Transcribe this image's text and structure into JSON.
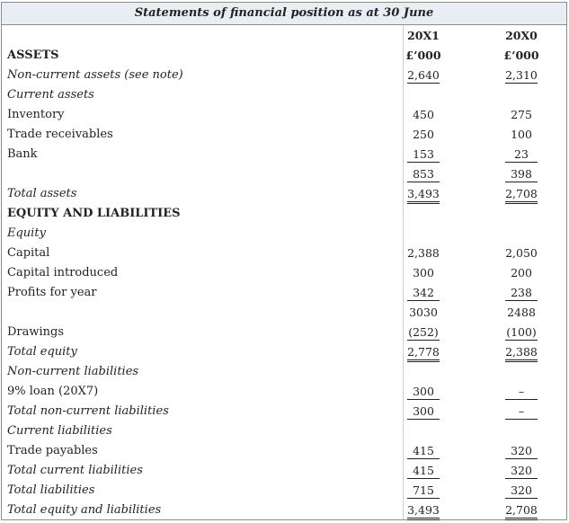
{
  "title": "Statements of financial position as at 30 June",
  "columns": {
    "year1": "20X1",
    "year2": "20X0",
    "unit1": "£’000",
    "unit2": "£’000"
  },
  "rows": [
    {
      "label": "ASSETS",
      "v1": "",
      "v2": ""
    },
    {
      "label": "Non-current assets (see note)",
      "v1": "2,640",
      "v2": "2,310"
    },
    {
      "label": "Current assets",
      "v1": "",
      "v2": ""
    },
    {
      "label": "Inventory",
      "v1": "450",
      "v2": "275"
    },
    {
      "label": "Trade receivables",
      "v1": "250",
      "v2": "100"
    },
    {
      "label": "Bank",
      "v1": "153",
      "v2": "23"
    },
    {
      "label": "",
      "v1": "853",
      "v2": "398"
    },
    {
      "label": "Total assets",
      "v1": "3,493",
      "v2": "2,708"
    },
    {
      "label": "EQUITY AND LIABILITIES",
      "v1": "",
      "v2": ""
    },
    {
      "label": "Equity",
      "v1": "",
      "v2": ""
    },
    {
      "label": "Capital",
      "v1": "2,388",
      "v2": "2,050"
    },
    {
      "label": "Capital introduced",
      "v1": "300",
      "v2": "200"
    },
    {
      "label": "Profits for year",
      "v1": "342",
      "v2": "238"
    },
    {
      "label": "",
      "v1": "3030",
      "v2": "2488"
    },
    {
      "label": "Drawings",
      "v1": "(252)",
      "v2": "(100)"
    },
    {
      "label": "Total equity",
      "v1": "2,778",
      "v2": "2,388"
    },
    {
      "label": "Non-current liabilities",
      "v1": "",
      "v2": ""
    },
    {
      "label": "9% loan (20X7)",
      "v1": "300",
      "v2": "–"
    },
    {
      "label": "Total non-current liabilities",
      "v1": "300",
      "v2": "–"
    },
    {
      "label": "Current liabilities",
      "v1": "",
      "v2": ""
    },
    {
      "label": "Trade payables",
      "v1": "415",
      "v2": "320"
    },
    {
      "label": "Total current liabilities",
      "v1": "415",
      "v2": "320"
    },
    {
      "label": "Total liabilities",
      "v1": "715",
      "v2": "320"
    },
    {
      "label": "Total equity and liabilities",
      "v1": "3,493",
      "v2": "2,708"
    }
  ]
}
